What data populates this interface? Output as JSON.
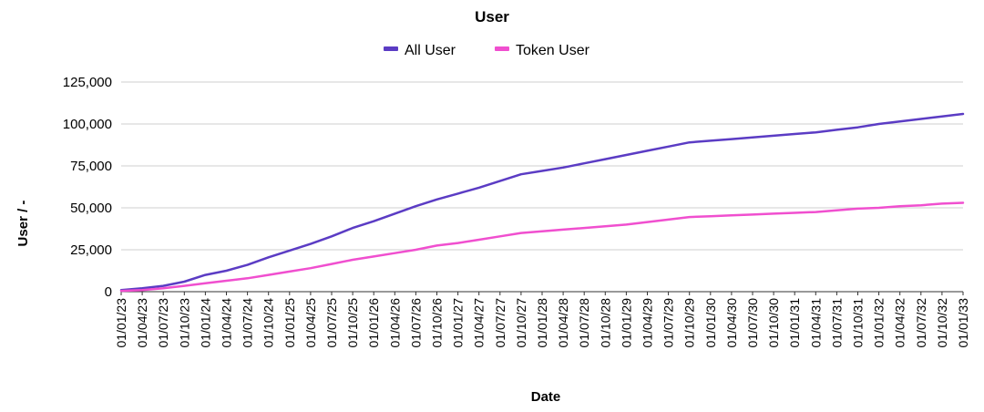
{
  "chart_data": {
    "type": "line",
    "title": "User",
    "xlabel": "Date",
    "ylabel": "User / -",
    "ylim": [
      0,
      125000
    ],
    "yticks": [
      "0",
      "25,000",
      "50,000",
      "75,000",
      "100,000",
      "125,000"
    ],
    "ytick_values": [
      0,
      25000,
      50000,
      75000,
      100000,
      125000
    ],
    "grid": true,
    "legend_position": "top",
    "x": [
      "01/01/23",
      "01/04/23",
      "01/07/23",
      "01/10/23",
      "01/01/24",
      "01/04/24",
      "01/07/24",
      "01/10/24",
      "01/01/25",
      "01/04/25",
      "01/07/25",
      "01/10/25",
      "01/01/26",
      "01/04/26",
      "01/07/26",
      "01/10/26",
      "01/01/27",
      "01/04/27",
      "01/07/27",
      "01/10/27",
      "01/01/28",
      "01/04/28",
      "01/07/28",
      "01/10/28",
      "01/01/29",
      "01/04/29",
      "01/07/29",
      "01/10/29",
      "01/01/30",
      "01/04/30",
      "01/07/30",
      "01/10/30",
      "01/01/31",
      "01/04/31",
      "01/07/31",
      "01/10/31",
      "01/01/32",
      "01/04/32",
      "01/07/32",
      "01/10/32",
      "01/01/33"
    ],
    "series": [
      {
        "name": "All User",
        "color": "#5b3cc4",
        "values": [
          1000,
          2000,
          3500,
          6000,
          10000,
          12500,
          16000,
          20500,
          24500,
          28500,
          33000,
          38000,
          42000,
          46500,
          51000,
          55000,
          58500,
          62000,
          66000,
          70000,
          72000,
          74000,
          76500,
          79000,
          81500,
          84000,
          86500,
          89000,
          90000,
          91000,
          92000,
          93000,
          94000,
          95000,
          96500,
          98000,
          100000,
          101500,
          103000,
          104500,
          106000
        ]
      },
      {
        "name": "Token User",
        "color": "#f04fcf",
        "values": [
          500,
          1000,
          2000,
          3500,
          5000,
          6500,
          8000,
          10000,
          12000,
          14000,
          16500,
          19000,
          21000,
          23000,
          25000,
          27500,
          29000,
          31000,
          33000,
          35000,
          36000,
          37000,
          38000,
          39000,
          40000,
          41500,
          43000,
          44500,
          45000,
          45500,
          46000,
          46500,
          47000,
          47500,
          48500,
          49500,
          50000,
          51000,
          51500,
          52500,
          53000
        ]
      }
    ]
  }
}
